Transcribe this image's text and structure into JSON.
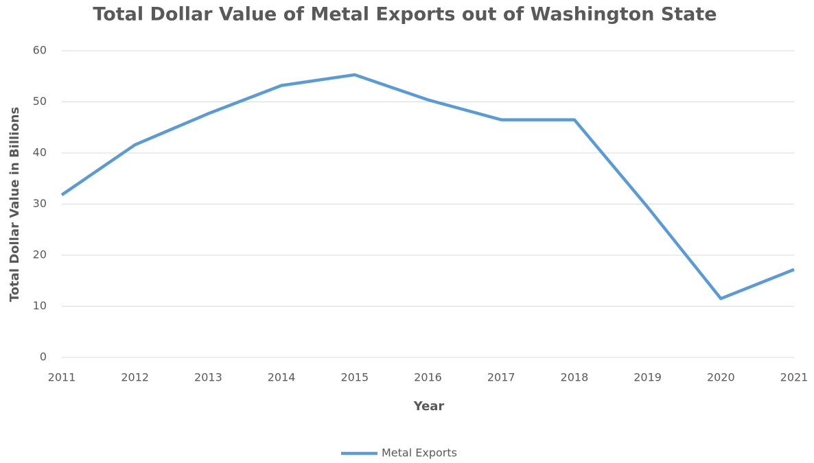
{
  "chart_data": {
    "type": "line",
    "title": "Total Dollar Value of Metal Exports out of Washington State",
    "x_label": "Year",
    "y_label": "Total Dollar Value in Billions",
    "x": [
      2011,
      2012,
      2013,
      2014,
      2015,
      2016,
      2017,
      2018,
      2019,
      2020,
      2021
    ],
    "series": [
      {
        "name": "Metal Exports",
        "color": "#5b9bd5",
        "values": [
          31.8,
          41.6,
          47.7,
          53.2,
          55.3,
          50.4,
          46.5,
          46.5,
          29.4,
          11.5,
          17.2
        ]
      }
    ],
    "xlim": [
      2011,
      2021
    ],
    "xticks": [
      2011,
      2012,
      2013,
      2014,
      2015,
      2016,
      2017,
      2018,
      2019,
      2020,
      2021
    ],
    "ylim": [
      0,
      60
    ],
    "yticks": [
      0,
      10,
      20,
      30,
      40,
      50,
      60
    ],
    "grid": true,
    "legend": "bottom"
  }
}
